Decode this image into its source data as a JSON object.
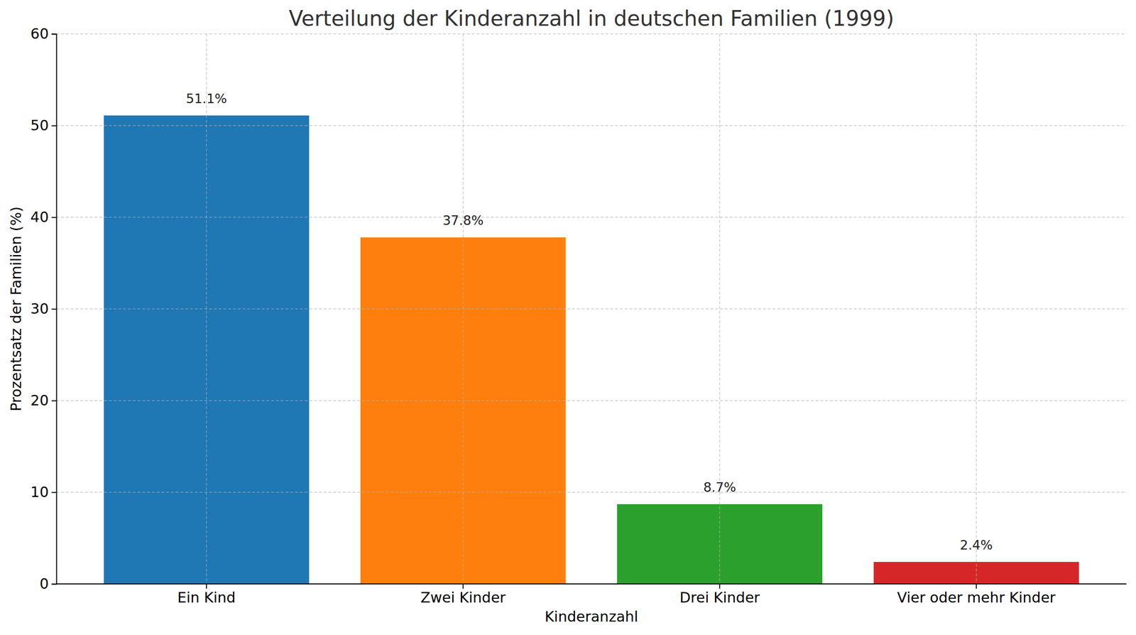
{
  "chart_data": {
    "type": "bar",
    "title": "Verteilung der Kinderanzahl in deutschen Familien (1999)",
    "x_label": "Kinderanzahl",
    "y_label": "Prozentsatz der Familien (%)",
    "categories": [
      "Ein Kind",
      "Zwei Kinder",
      "Drei Kinder",
      "Vier oder mehr Kinder"
    ],
    "values": [
      51.1,
      37.8,
      8.7,
      2.4
    ],
    "value_labels": [
      "51.1%",
      "37.8%",
      "8.7%",
      "2.4%"
    ],
    "colors": [
      "#1f77b4",
      "#ff7f0e",
      "#2ca02c",
      "#d62728"
    ],
    "ylim": [
      0,
      60
    ],
    "yticks": [
      0,
      10,
      20,
      30,
      40,
      50,
      60
    ],
    "grid": true,
    "data_labels": true
  }
}
